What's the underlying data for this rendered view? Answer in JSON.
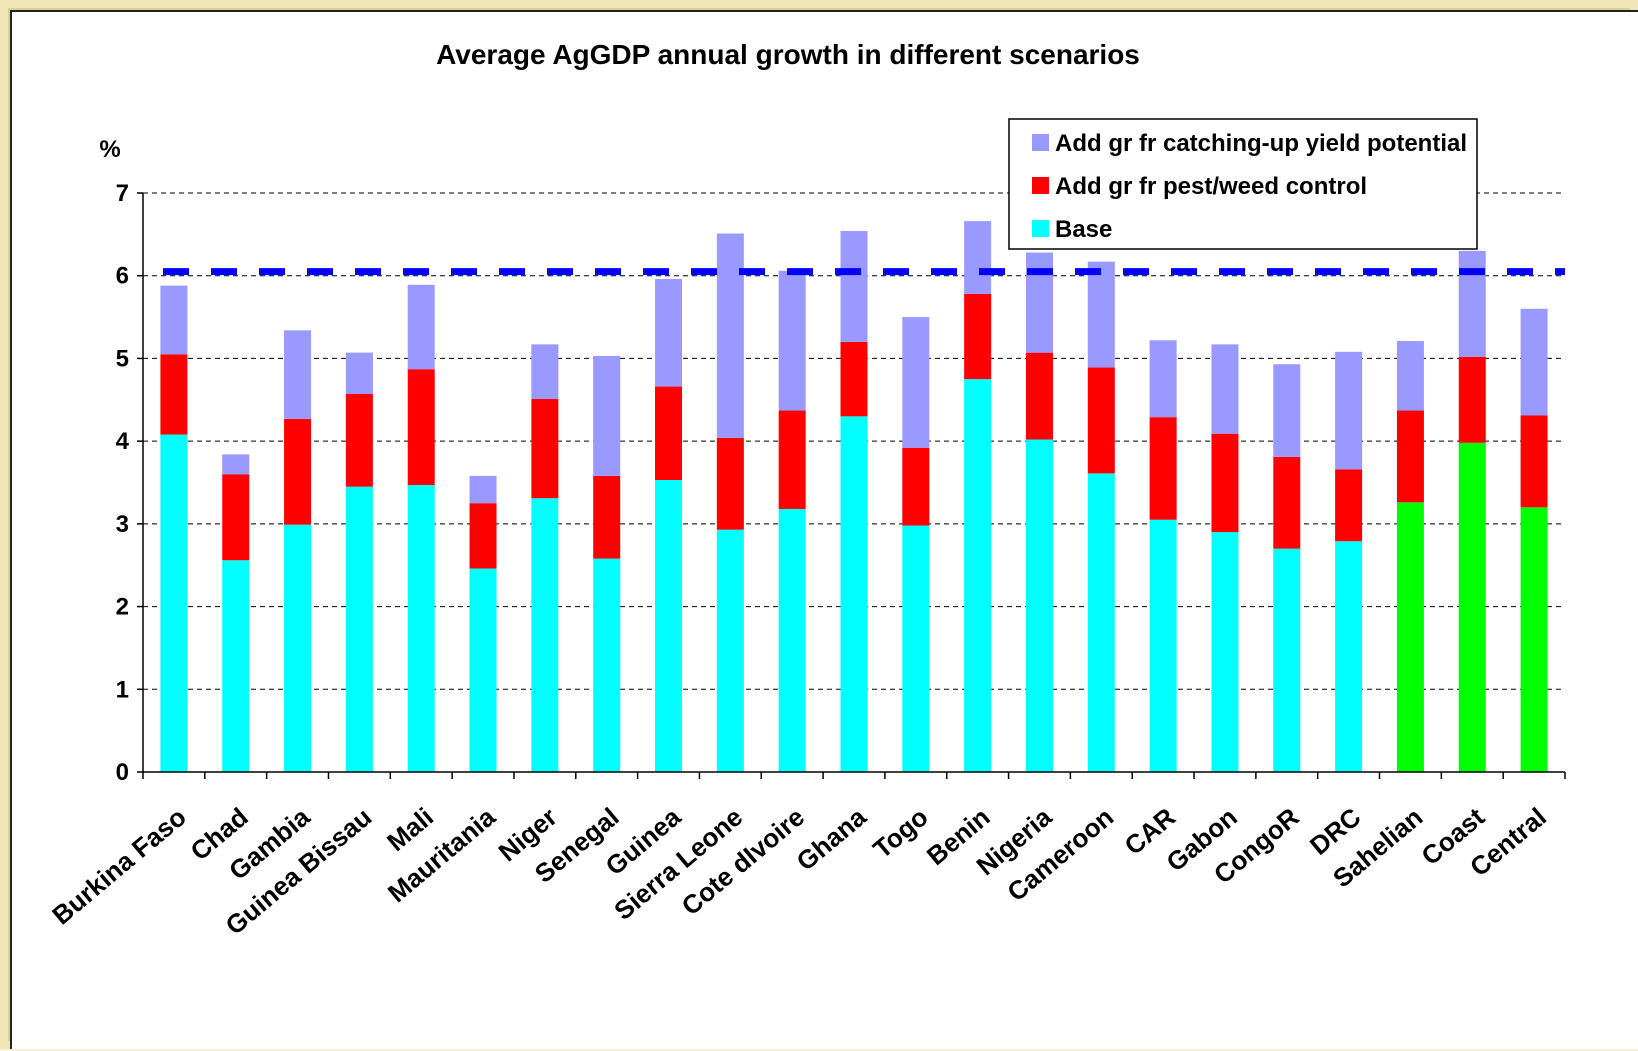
{
  "chart_data": {
    "type": "bar",
    "stacked": true,
    "title": "Average AgGDP annual growth in different scenarios",
    "ylabel": "%",
    "xlabel": "",
    "ylim": [
      0,
      7
    ],
    "yticks": [
      0,
      1,
      2,
      3,
      4,
      5,
      6,
      7
    ],
    "grid": "horizontal dashed",
    "legend_position": "top-right",
    "reference_line": {
      "value": 6.05,
      "color": "#0000ff",
      "style": "dashed"
    },
    "categories": [
      "Burkina Faso",
      "Chad",
      "Gambia",
      "Guinea Bissau",
      "Mali",
      "Mauritania",
      "Niger",
      "Senegal",
      "Guinea",
      "Sierra Leone",
      "Cote dIvoire",
      "Ghana",
      "Togo",
      "Benin",
      "Nigeria",
      "Cameroon",
      "CAR",
      "Gabon",
      "CongoR",
      "DRC",
      "Sahelian",
      "Coast",
      "Central"
    ],
    "series": [
      {
        "name": "Base",
        "color": "#00ffff",
        "values": [
          4.08,
          2.56,
          2.99,
          3.45,
          3.47,
          2.46,
          3.31,
          2.58,
          3.53,
          2.93,
          3.18,
          4.3,
          2.98,
          4.75,
          4.02,
          3.61,
          3.05,
          2.9,
          2.7,
          2.79,
          3.26,
          3.98,
          3.2
        ]
      },
      {
        "name": "Add gr fr pest/weed control",
        "color": "#ff0000",
        "values": [
          0.97,
          1.04,
          1.28,
          1.12,
          1.4,
          0.79,
          1.2,
          1.0,
          1.13,
          1.11,
          1.19,
          0.9,
          0.94,
          1.03,
          1.05,
          1.28,
          1.24,
          1.19,
          1.11,
          0.87,
          1.11,
          1.04,
          1.11
        ]
      },
      {
        "name": "Add gr fr catching-up yield potential",
        "color": "#9999ff",
        "values": [
          0.83,
          0.24,
          1.07,
          0.5,
          1.02,
          0.33,
          0.66,
          1.45,
          1.3,
          2.47,
          1.69,
          1.34,
          1.58,
          0.88,
          1.21,
          1.28,
          0.93,
          1.08,
          1.12,
          1.42,
          0.84,
          1.28,
          1.29
        ]
      }
    ],
    "highlight_base_color": "#00ff00",
    "highlight_categories": [
      "Sahelian",
      "Coast",
      "Central"
    ]
  }
}
